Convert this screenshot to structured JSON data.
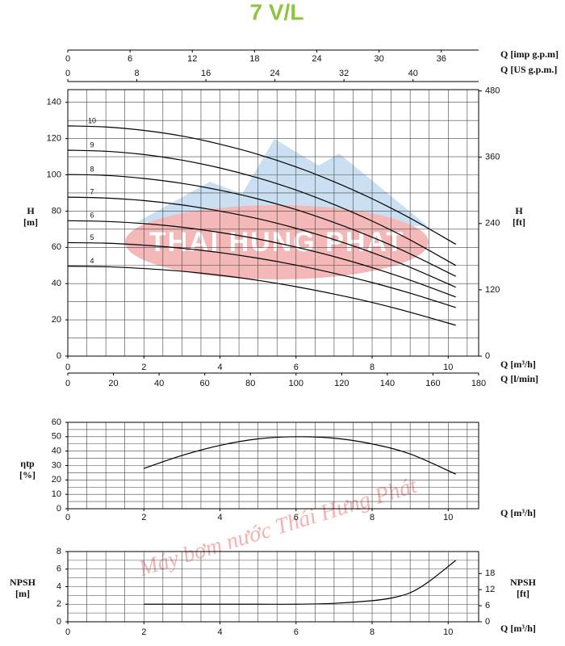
{
  "title": "7 V/L",
  "logo_text": "THAI HUNG PHAT",
  "watermark": "Máy bơm nước Thái Hưng Phát",
  "chart_data": [
    {
      "type": "line",
      "grid": true,
      "curve_labels": true,
      "xlabel": "Q [m³/h]",
      "ylabel": "H",
      "yunit": "[m]",
      "y2label": "H",
      "y2unit": "[ft]",
      "xlim": [
        0,
        10.8
      ],
      "xticks": [
        0,
        2,
        4,
        6,
        8,
        10
      ],
      "xgrid": [
        0,
        0.5,
        1,
        1.5,
        2,
        2.5,
        3,
        3.5,
        4,
        4.5,
        5,
        5.5,
        6,
        6.5,
        7,
        7.5,
        8,
        8.5,
        9,
        9.5,
        10,
        10.5
      ],
      "ylim": [
        0,
        147
      ],
      "yticks": [
        0,
        20,
        40,
        60,
        80,
        100,
        120,
        140
      ],
      "ygrid": [
        0,
        10,
        20,
        30,
        40,
        50,
        60,
        70,
        80,
        90,
        100,
        110,
        120,
        130,
        140
      ],
      "y2lim": [
        0,
        482.3
      ],
      "y2ticks": [
        0,
        120,
        240,
        360,
        480
      ],
      "extra_x_axes": [
        {
          "label": "Q [l/min]",
          "position": "bottom",
          "lim": [
            0,
            180
          ],
          "ticks": [
            0,
            20,
            40,
            60,
            80,
            100,
            120,
            140,
            160,
            180
          ]
        },
        {
          "label": "Q [imp g.p.m]",
          "position": "top",
          "lim": [
            0,
            39.6
          ],
          "ticks": [
            0,
            6,
            12,
            18,
            24,
            30,
            36
          ]
        },
        {
          "label": "Q [US g.p.m.]",
          "position": "top",
          "lim": [
            0,
            47.6
          ],
          "ticks": [
            0,
            8,
            16,
            24,
            32,
            40
          ]
        }
      ],
      "x": [
        0,
        1,
        2,
        3,
        4,
        5,
        6,
        7,
        8,
        9,
        10.2
      ],
      "series": [
        {
          "name": "10",
          "color": "#000000",
          "values": [
            127,
            126.4,
            124.5,
            121.4,
            116.9,
            111.3,
            104.4,
            96.2,
            86.8,
            76.1,
            61.7
          ]
        },
        {
          "name": "9",
          "color": "#000000",
          "values": [
            113.6,
            113.0,
            111.2,
            108.1,
            103.8,
            98.3,
            91.6,
            83.6,
            74.5,
            64.1,
            50
          ]
        },
        {
          "name": "8",
          "color": "#000000",
          "values": [
            100.2,
            99.7,
            98.0,
            95.3,
            91.5,
            86.7,
            80.8,
            73.7,
            65.6,
            56.4,
            44
          ]
        },
        {
          "name": "7",
          "color": "#000000",
          "values": [
            87.7,
            87.2,
            85.8,
            83.4,
            80.0,
            75.8,
            70.5,
            64.3,
            57.1,
            49.0,
            38
          ]
        },
        {
          "name": "6",
          "color": "#000000",
          "values": [
            74.7,
            74.3,
            73.1,
            71.1,
            68.2,
            64.6,
            60.1,
            54.9,
            48.8,
            41.9,
            32.6
          ]
        },
        {
          "name": "5",
          "color": "#000000",
          "values": [
            62.6,
            62.3,
            61.2,
            59.5,
            57.1,
            54.0,
            50.2,
            45.7,
            40.6,
            34.7,
            26.8
          ]
        },
        {
          "name": "4",
          "color": "#000000",
          "values": [
            49.6,
            49.3,
            48.3,
            46.8,
            44.6,
            41.8,
            38.3,
            34.2,
            29.6,
            24.2,
            17
          ]
        }
      ]
    },
    {
      "type": "line",
      "grid": true,
      "xlabel": "Q [m³/h]",
      "ylabel": "ηtp",
      "yunit": "[%]",
      "xlim": [
        0,
        10.8
      ],
      "xticks": [
        0,
        2,
        4,
        6,
        8,
        10
      ],
      "xgrid": [
        0,
        0.5,
        1,
        1.5,
        2,
        2.5,
        3,
        3.5,
        4,
        4.5,
        5,
        5.5,
        6,
        6.5,
        7,
        7.5,
        8,
        8.5,
        9,
        9.5,
        10,
        10.5
      ],
      "ylim": [
        0,
        60
      ],
      "yticks": [
        0,
        10,
        20,
        30,
        40,
        50,
        60
      ],
      "ygrid": [
        0,
        5,
        10,
        15,
        20,
        25,
        30,
        35,
        40,
        45,
        50,
        55,
        60
      ],
      "x": [
        2,
        3,
        4,
        5,
        6,
        7,
        8,
        9,
        10.2
      ],
      "series": [
        {
          "color": "#000000",
          "values": [
            28,
            37,
            44,
            48.5,
            50,
            49,
            45,
            38,
            24
          ]
        }
      ]
    },
    {
      "type": "line",
      "grid": true,
      "xlabel": "Q [m³/h]",
      "ylabel": "NPSH",
      "yunit": "[m]",
      "y2label": "NPSH",
      "y2unit": "[ft]",
      "xlim": [
        0,
        10.8
      ],
      "xticks": [
        0,
        2,
        4,
        6,
        8,
        10
      ],
      "xgrid": [
        0,
        0.5,
        1,
        1.5,
        2,
        2.5,
        3,
        3.5,
        4,
        4.5,
        5,
        5.5,
        6,
        6.5,
        7,
        7.5,
        8,
        8.5,
        9,
        9.5,
        10,
        10.5
      ],
      "ylim": [
        0,
        8
      ],
      "yticks": [
        0,
        2,
        4,
        6,
        8
      ],
      "ygrid": [
        0,
        1,
        2,
        3,
        4,
        5,
        6,
        7,
        8
      ],
      "y2lim": [
        0,
        26.2
      ],
      "y2ticks": [
        0,
        6,
        12,
        18
      ],
      "x": [
        2,
        3,
        4,
        5,
        6,
        7,
        8,
        8.5,
        9,
        9.5,
        10.2
      ],
      "series": [
        {
          "color": "#000000",
          "values": [
            2,
            2,
            2,
            2,
            2,
            2.1,
            2.4,
            2.7,
            3.3,
            4.6,
            7
          ]
        }
      ]
    }
  ]
}
